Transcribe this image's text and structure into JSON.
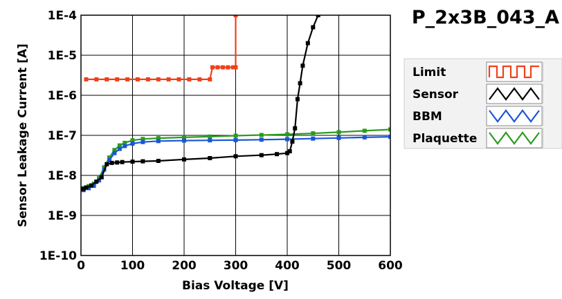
{
  "chart_data": {
    "type": "line",
    "title": "P_2x3B_043_A",
    "xlabel": "Bias Voltage [V]",
    "ylabel": "Sensor Leakage Current [A]",
    "xlim": [
      0,
      600
    ],
    "ylim": [
      1e-10,
      0.0001
    ],
    "y_scale": "log",
    "grid": true,
    "legend_position": "right",
    "x_ticks": [
      "0",
      "100",
      "200",
      "300",
      "400",
      "500",
      "600"
    ],
    "y_ticks": [
      "1E-10",
      "1E-9",
      "1E-8",
      "1E-7",
      "1E-6",
      "1E-5",
      "1E-4"
    ],
    "series": [
      {
        "name": "Limit",
        "color": "#f0401a",
        "x": [
          10,
          30,
          50,
          70,
          90,
          110,
          130,
          150,
          170,
          190,
          210,
          230,
          250,
          255,
          265,
          275,
          285,
          295,
          300,
          300
        ],
        "y": [
          2.5e-06,
          2.5e-06,
          2.5e-06,
          2.5e-06,
          2.5e-06,
          2.5e-06,
          2.5e-06,
          2.5e-06,
          2.5e-06,
          2.5e-06,
          2.5e-06,
          2.5e-06,
          2.5e-06,
          5e-06,
          5e-06,
          5e-06,
          5e-06,
          5e-06,
          5e-06,
          0.0001
        ]
      },
      {
        "name": "Sensor",
        "color": "#000000",
        "x": [
          5,
          10,
          20,
          30,
          40,
          50,
          60,
          70,
          80,
          100,
          120,
          150,
          200,
          250,
          300,
          350,
          380,
          400,
          405,
          410,
          415,
          420,
          425,
          430,
          440,
          450,
          460
        ],
        "y": [
          4.6e-09,
          5e-09,
          5.6e-09,
          7e-09,
          9e-09,
          1.9e-08,
          2.05e-08,
          2.1e-08,
          2.15e-08,
          2.2e-08,
          2.25e-08,
          2.3e-08,
          2.5e-08,
          2.7e-08,
          3e-08,
          3.2e-08,
          3.4e-08,
          3.6e-08,
          4e-08,
          7e-08,
          1.5e-07,
          8e-07,
          2e-06,
          5.5e-06,
          2e-05,
          5e-05,
          0.0001
        ]
      },
      {
        "name": "BBM",
        "color": "#1a56d6",
        "x": [
          5,
          15,
          25,
          35,
          45,
          55,
          65,
          75,
          85,
          100,
          120,
          150,
          200,
          250,
          300,
          350,
          400,
          450,
          500,
          550,
          600
        ],
        "y": [
          4.3e-09,
          4.8e-09,
          5.5e-09,
          7.5e-09,
          1.4e-08,
          2.4e-08,
          3.6e-08,
          4.6e-08,
          5.4e-08,
          6.2e-08,
          6.8e-08,
          7.2e-08,
          7.4e-08,
          7.5e-08,
          7.6e-08,
          7.8e-08,
          8e-08,
          8.3e-08,
          8.6e-08,
          8.9e-08,
          9.2e-08
        ]
      },
      {
        "name": "Plaquette",
        "color": "#2a9c1f",
        "x": [
          5,
          15,
          25,
          35,
          45,
          55,
          65,
          75,
          85,
          100,
          120,
          150,
          200,
          250,
          300,
          350,
          400,
          450,
          500,
          550,
          600
        ],
        "y": [
          4.8e-09,
          5.4e-09,
          6.2e-09,
          8.5e-09,
          1.6e-08,
          2.8e-08,
          4.3e-08,
          5.6e-08,
          6.5e-08,
          7.5e-08,
          8.1e-08,
          8.5e-08,
          8.9e-08,
          9.3e-08,
          9.8e-08,
          1.02e-07,
          1.06e-07,
          1.12e-07,
          1.2e-07,
          1.3e-07,
          1.4e-07
        ]
      }
    ]
  }
}
